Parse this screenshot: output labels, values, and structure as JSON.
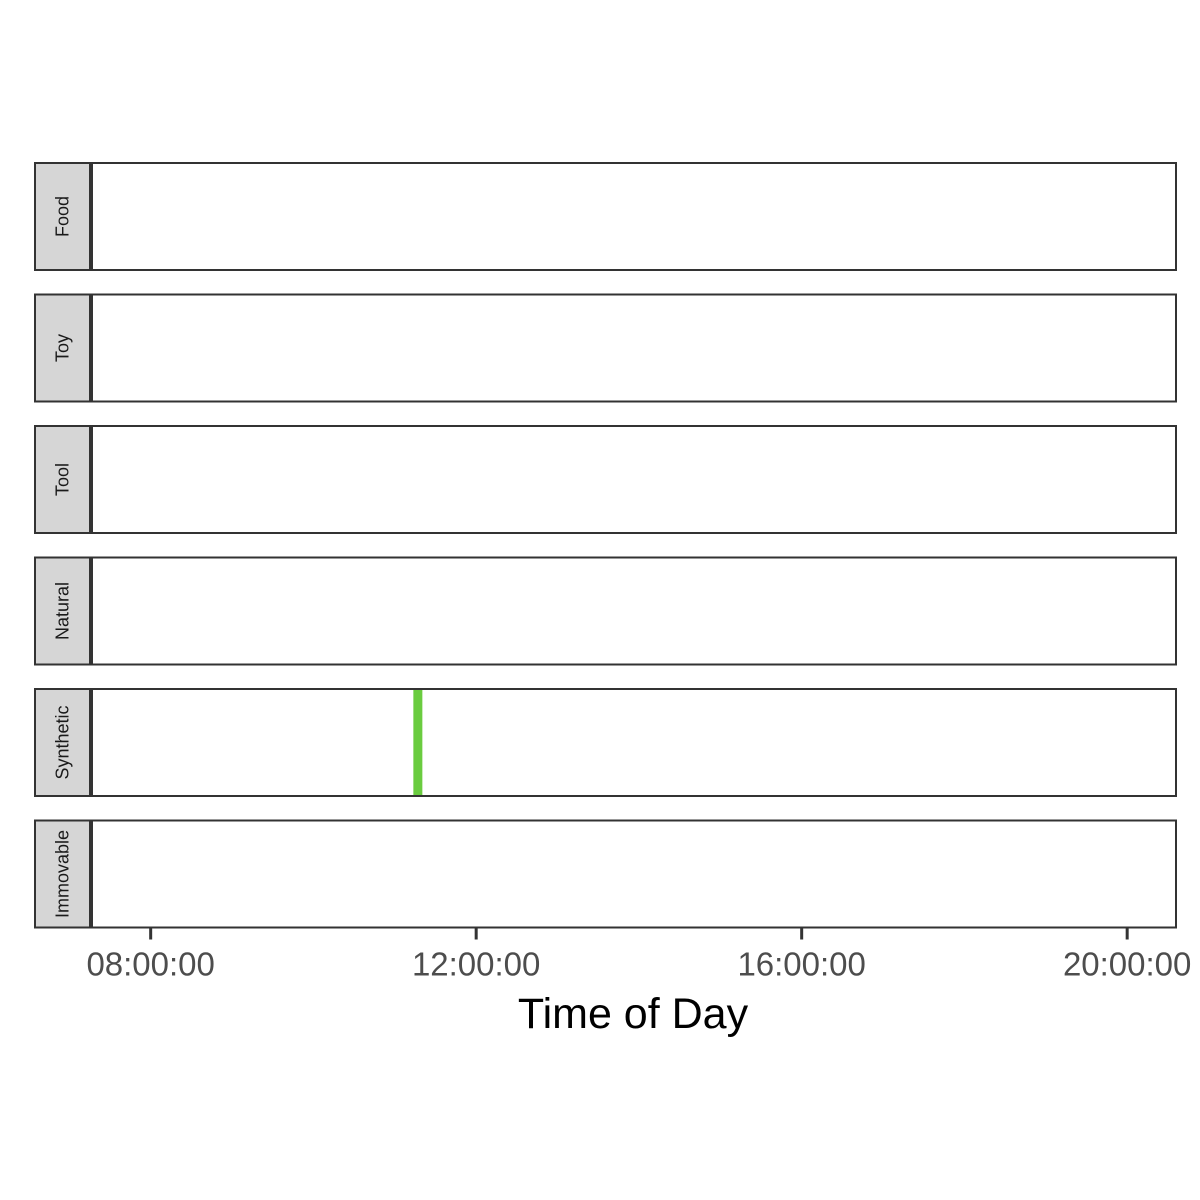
{
  "chart_data": {
    "type": "timeline-facets",
    "xlabel": "Time of Day",
    "x_ticks": [
      "08:00:00",
      "12:00:00",
      "16:00:00",
      "20:00:00"
    ],
    "xlim": [
      "07:16:00",
      "20:36:00"
    ],
    "facets": [
      {
        "label": "Food",
        "events": []
      },
      {
        "label": "Toy",
        "events": []
      },
      {
        "label": "Tool",
        "events": []
      },
      {
        "label": "Natural",
        "events": []
      },
      {
        "label": "Synthetic",
        "events": [
          {
            "time": "11:17:00"
          }
        ]
      },
      {
        "label": "Immovable",
        "events": []
      }
    ],
    "event_color": "#6acc3f",
    "strip_fill": "#d6d6d6",
    "panel_border": "#333333"
  }
}
